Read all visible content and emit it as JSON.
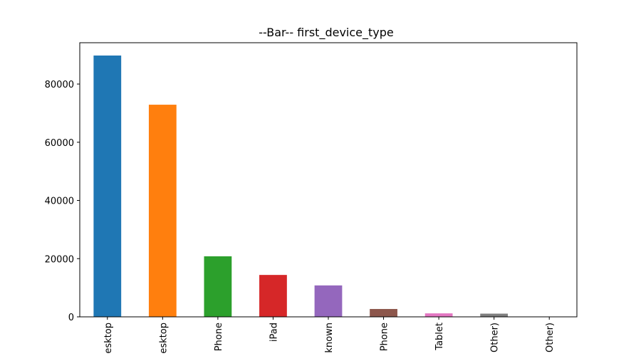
{
  "chart_data": {
    "type": "bar",
    "title": "--Bar-- first_device_type",
    "categories": [
      "esktop",
      "esktop",
      "Phone",
      "iPad",
      "known",
      "Phone",
      "Tablet",
      "Other)",
      "Other)"
    ],
    "values": [
      89800,
      72900,
      20800,
      14400,
      10800,
      2700,
      1200,
      1100,
      30
    ],
    "colors": [
      "#1f77b4",
      "#ff7f0e",
      "#2ca02c",
      "#d62728",
      "#9467bd",
      "#8c564b",
      "#e377c2",
      "#7f7f7f",
      "#bcbd22"
    ],
    "ylim": [
      0,
      94200
    ],
    "yticks": [
      0,
      20000,
      40000,
      60000,
      80000
    ],
    "grid": false
  }
}
